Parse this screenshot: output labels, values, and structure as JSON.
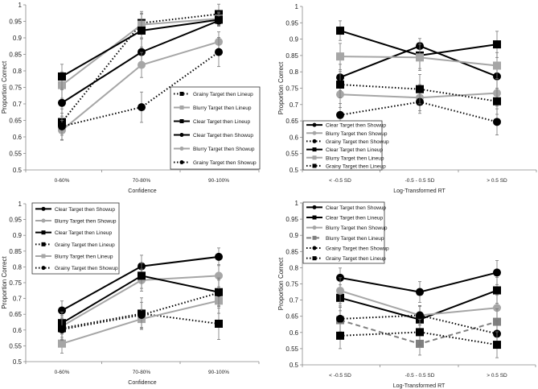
{
  "chart_data": [
    {
      "type": "line",
      "xlabel": "Confidence",
      "ylabel": "Proportion Correct",
      "ylim": [
        0.5,
        1
      ],
      "yticks": [
        "0.5",
        "0.55",
        "0.6",
        "0.65",
        "0.7",
        "0.75",
        "0.8",
        "0.85",
        "0.9",
        "0.95",
        "1"
      ],
      "categories": [
        "0-60%",
        "70-80%",
        "90-100%"
      ],
      "legend": "bottom-right",
      "series": [
        {
          "name": "Grainy Target then Lineup",
          "color": "#000000",
          "dash": "dotted",
          "marker": "square",
          "values": [
            0.645,
            0.945,
            0.972
          ],
          "err": [
            0.04,
            0.03,
            0.03
          ]
        },
        {
          "name": "Blurry Target then Lineup",
          "color": "#a6a6a6",
          "dash": "solid",
          "marker": "square",
          "values": [
            0.757,
            0.94,
            0.958
          ],
          "err": [
            0.04,
            0.04,
            0.02
          ]
        },
        {
          "name": "Clear Target then Lineup",
          "color": "#000000",
          "dash": "solid",
          "marker": "square",
          "values": [
            0.783,
            0.922,
            0.955
          ],
          "err": [
            0.037,
            0.05,
            0.02
          ]
        },
        {
          "name": "Clear Target then Showup",
          "color": "#000000",
          "dash": "solid",
          "marker": "circle",
          "values": [
            0.703,
            0.857,
            0.952
          ],
          "err": [
            0.04,
            0.04,
            0.015
          ]
        },
        {
          "name": "Blurry Target then Showup",
          "color": "#a6a6a6",
          "dash": "solid",
          "marker": "circle",
          "values": [
            0.62,
            0.818,
            0.888
          ],
          "err": [
            0.03,
            0.038,
            0.03
          ]
        },
        {
          "name": "Grainy Target then Showup",
          "color": "#000000",
          "dash": "dotted",
          "marker": "circle",
          "values": [
            0.632,
            0.69,
            0.857
          ],
          "err": [
            0.04,
            0.046,
            0.044
          ]
        }
      ]
    },
    {
      "type": "line",
      "xlabel": "Log-Transformed RT",
      "ylabel": "Proportion Correct",
      "ylim": [
        0.5,
        1
      ],
      "yticks": [
        "0.5",
        "0.55",
        "0.6",
        "0.65",
        "0.7",
        "0.75",
        "0.8",
        "0.85",
        "0.9",
        "0.95",
        "1"
      ],
      "categories": [
        "< -0.5 SD",
        "-0.5 - 0.5 SD",
        "> 0.5 SD"
      ],
      "legend": "bottom-left",
      "series": [
        {
          "name": "Clear Target then Showup",
          "color": "#000000",
          "dash": "solid",
          "marker": "circle",
          "values": [
            0.783,
            0.879,
            0.786
          ],
          "err": [
            0.04,
            0.023,
            0.04
          ]
        },
        {
          "name": "Blurry Target then Showup",
          "color": "#a6a6a6",
          "dash": "solid",
          "marker": "circle",
          "values": [
            0.731,
            0.721,
            0.735
          ],
          "err": [
            0.04,
            0.04,
            0.04
          ]
        },
        {
          "name": "Grainy Target then Showup",
          "color": "#000000",
          "dash": "dotted",
          "marker": "circle",
          "values": [
            0.668,
            0.708,
            0.647
          ],
          "err": [
            0.035,
            0.035,
            0.04
          ]
        },
        {
          "name": "Clear Target then Lineup",
          "color": "#000000",
          "dash": "solid",
          "marker": "square",
          "values": [
            0.926,
            0.85,
            0.884
          ],
          "err": [
            0.03,
            0.04,
            0.04
          ]
        },
        {
          "name": "Blurry Target then Lineup",
          "color": "#a6a6a6",
          "dash": "solid",
          "marker": "square",
          "values": [
            0.847,
            0.844,
            0.819
          ],
          "err": [
            0.04,
            0.04,
            0.04
          ]
        },
        {
          "name": "Grainy Target then Lineup",
          "color": "#000000",
          "dash": "dotted",
          "marker": "square",
          "values": [
            0.761,
            0.747,
            0.71
          ],
          "err": [
            0.04,
            0.045,
            0.04
          ]
        }
      ]
    },
    {
      "type": "line",
      "xlabel": "Confidence",
      "ylabel": "Proportion Correct",
      "ylim": [
        0.5,
        1
      ],
      "yticks": [
        "0.5",
        "0.55",
        "0.6",
        "0.65",
        "0.7",
        "0.75",
        "0.8",
        "0.85",
        "0.9",
        "0.95",
        "1"
      ],
      "categories": [
        "0-60%",
        "70-80%",
        "90-100%"
      ],
      "legend": "top-left",
      "series": [
        {
          "name": "Clear Target then Showup",
          "color": "#000000",
          "dash": "solid",
          "marker": "circle",
          "values": [
            0.662,
            0.802,
            0.832
          ],
          "err": [
            0.03,
            0.035,
            0.028
          ]
        },
        {
          "name": "Blurry Target then Showup",
          "color": "#a6a6a6",
          "dash": "solid",
          "marker": "circle",
          "values": [
            0.612,
            0.758,
            0.772
          ],
          "err": [
            0.035,
            0.035,
            0.035
          ]
        },
        {
          "name": "Clear Target then Lineup",
          "color": "#000000",
          "dash": "solid",
          "marker": "square",
          "values": [
            0.622,
            0.772,
            0.72
          ],
          "err": [
            0.035,
            0.04,
            0.045
          ]
        },
        {
          "name": "Grainy Target then Lineup",
          "color": "#000000",
          "dash": "dotted",
          "marker": "square",
          "values": [
            0.606,
            0.652,
            0.62
          ],
          "err": [
            0.035,
            0.05,
            0.05
          ]
        },
        {
          "name": "Blurry Target then Lineup",
          "color": "#a6a6a6",
          "dash": "solid",
          "marker": "square",
          "values": [
            0.557,
            0.635,
            0.693
          ],
          "err": [
            0.03,
            0.03,
            0.04
          ]
        },
        {
          "name": "Grainy Target then Showup",
          "color": "#000000",
          "dash": "dotted",
          "marker": "circle",
          "values": [
            0.602,
            0.648,
            0.718
          ],
          "err": [
            0.035,
            0.04,
            0.04
          ]
        }
      ]
    },
    {
      "type": "line",
      "xlabel": "Log-Transformed RT",
      "ylabel": "Proportion Correct",
      "ylim": [
        0.5,
        1
      ],
      "yticks": [
        "0.5",
        "0.55",
        "0.6",
        "0.65",
        "0.7",
        "0.75",
        "0.8",
        "0.85",
        "0.9",
        "0.95",
        "1"
      ],
      "categories": [
        "< -0.5 SD",
        "-0.5 - 0.5 SD",
        "> 0.5 SD"
      ],
      "legend": "top-left",
      "series": [
        {
          "name": "Clear Target then Showup",
          "color": "#000000",
          "dash": "solid",
          "marker": "circle",
          "values": [
            0.769,
            0.725,
            0.785
          ],
          "err": [
            0.03,
            0.032,
            0.037
          ]
        },
        {
          "name": "Clear Target then Lineup",
          "color": "#000000",
          "dash": "solid",
          "marker": "square",
          "values": [
            0.707,
            0.64,
            0.73
          ],
          "err": [
            0.04,
            0.04,
            0.04
          ]
        },
        {
          "name": "Blurry Target then Showup",
          "color": "#a6a6a6",
          "dash": "solid",
          "marker": "circle",
          "values": [
            0.729,
            0.653,
            0.676
          ],
          "err": [
            0.04,
            0.03,
            0.04
          ]
        },
        {
          "name": "Blurry Target then Lineup",
          "color": "#808080",
          "dash": "dashed",
          "marker": "square",
          "values": [
            0.638,
            0.565,
            0.633
          ],
          "err": [
            0.04,
            0.035,
            0.04
          ]
        },
        {
          "name": "Grainy Target then Showup",
          "color": "#000000",
          "dash": "dotted",
          "marker": "circle",
          "values": [
            0.642,
            0.653,
            0.596
          ],
          "err": [
            0.04,
            0.03,
            0.04
          ]
        },
        {
          "name": "Grainy Target then Lineup",
          "color": "#000000",
          "dash": "dotted",
          "marker": "square",
          "values": [
            0.59,
            0.601,
            0.562
          ],
          "err": [
            0.04,
            0.04,
            0.04
          ]
        }
      ]
    }
  ]
}
